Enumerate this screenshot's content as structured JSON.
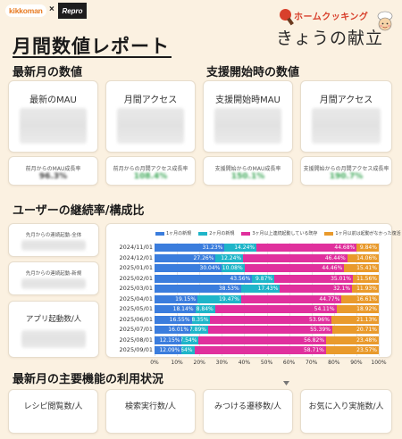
{
  "header": {
    "logo_kikkoman": "kikkoman",
    "logo_x": "×",
    "logo_repro": "Repro",
    "page_title": "月間数値レポート",
    "brand_top": "ホームクッキング",
    "brand_main": "きょうの献立"
  },
  "sections": {
    "latest": "最新月の数値",
    "support": "支援開始時の数値",
    "retention": "ユーザーの継続率/構成比",
    "features": "最新月の主要機能の利用状況"
  },
  "metric_cards": [
    {
      "title": "最新のMAU"
    },
    {
      "title": "月間アクセス"
    },
    {
      "title": "支援開始時MAU"
    },
    {
      "title": "月間アクセス"
    }
  ],
  "growth_cards": [
    {
      "label": "前月からのMAU成長率",
      "value": "96.3%",
      "color": "#444444"
    },
    {
      "label": "前月からの月間アクセス成長率",
      "value": "108.4%",
      "color": "#3aa655"
    },
    {
      "label": "支援開始からのMAU成長率",
      "value": "150.1%",
      "color": "#3aa655"
    },
    {
      "label": "支援開始からの月間アクセス成長率",
      "value": "190.7%",
      "color": "#3aa655"
    }
  ],
  "retention_cards": [
    {
      "title": "先月からの連続起動-全体"
    },
    {
      "title": "先月からの連続起動-新規"
    },
    {
      "title": "アプリ起動数/人"
    }
  ],
  "feature_cards": [
    {
      "title": "レシピ閲覧数/人"
    },
    {
      "title": "検索実行数/人"
    },
    {
      "title": "みつける遷移数/人"
    },
    {
      "title": "お気に入り実施数/人"
    }
  ],
  "colors": {
    "background": "#fbf1e1",
    "new_1m": "#3b7ddd",
    "new_2m": "#1fb5c9",
    "continuous_3m": "#e0309d",
    "dormant": "#e99a2c"
  },
  "chart_data": {
    "type": "bar",
    "orientation": "horizontal",
    "stacked": true,
    "legend": [
      "1ヶ月の新規",
      "2ヶ月の新規",
      "3ヶ月以上連続起動している既存",
      "1ヶ月以前は起動がなかった復活"
    ],
    "legend_position": "top",
    "categories": [
      "2024/11/01",
      "2024/12/01",
      "2025/01/01",
      "2025/02/01",
      "2025/03/01",
      "2025/04/01",
      "2025/05/01",
      "2025/06/01",
      "2025/07/01",
      "2025/08/01",
      "2025/09/01"
    ],
    "series": [
      {
        "name": "1ヶ月の新規",
        "color": "#3b7ddd",
        "values": [
          31.23,
          27.26,
          30.04,
          43.56,
          38.53,
          19.15,
          18.14,
          16.55,
          16.01,
          12.15,
          12.09
        ]
      },
      {
        "name": "2ヶ月の新規",
        "color": "#1fb5c9",
        "values": [
          14.24,
          12.24,
          10.08,
          9.87,
          17.43,
          19.47,
          8.84,
          8.35,
          7.89,
          7.54,
          5.64
        ]
      },
      {
        "name": "3ヶ月以上連続起動している既存",
        "color": "#e0309d",
        "values": [
          44.68,
          46.44,
          44.46,
          35.01,
          32.1,
          44.77,
          54.11,
          53.96,
          55.39,
          56.82,
          58.71
        ]
      },
      {
        "name": "1ヶ月以前は起動がなかった復活",
        "color": "#e99a2c",
        "values": [
          9.84,
          14.06,
          15.41,
          11.56,
          11.93,
          16.61,
          18.92,
          21.13,
          20.71,
          23.48,
          23.57
        ]
      }
    ],
    "data_labels": [
      [
        "31.23%",
        "14.24%",
        "44.68%",
        "9.84%"
      ],
      [
        "27.26%",
        "12.24%",
        "46.44%",
        "14.06%"
      ],
      [
        "30.04%",
        "10.08%",
        "44.46%",
        "15.41%"
      ],
      [
        "43.56%",
        "9.87%",
        "35.01%",
        "11.56%"
      ],
      [
        "38.53%",
        "17.43%",
        "32.1%",
        "11.93%"
      ],
      [
        "19.15%",
        "19.47%",
        "44.77%",
        "16.61%"
      ],
      [
        "18.14%",
        "8.84%",
        "54.11%",
        "18.92%"
      ],
      [
        "16.55%",
        "8.35%",
        "53.96%",
        "21.13%"
      ],
      [
        "16.01%",
        "7.89%",
        "55.39%",
        "20.71%"
      ],
      [
        "12.15%",
        "7.54%",
        "56.82%",
        "23.48%"
      ],
      [
        "12.09%",
        "5.64%",
        "58.71%",
        "23.57%"
      ]
    ],
    "x_ticks": [
      "0%",
      "10%",
      "20%",
      "30%",
      "40%",
      "50%",
      "60%",
      "70%",
      "80%",
      "90%",
      "100%"
    ],
    "xlim": [
      0,
      100
    ],
    "grid": true
  }
}
